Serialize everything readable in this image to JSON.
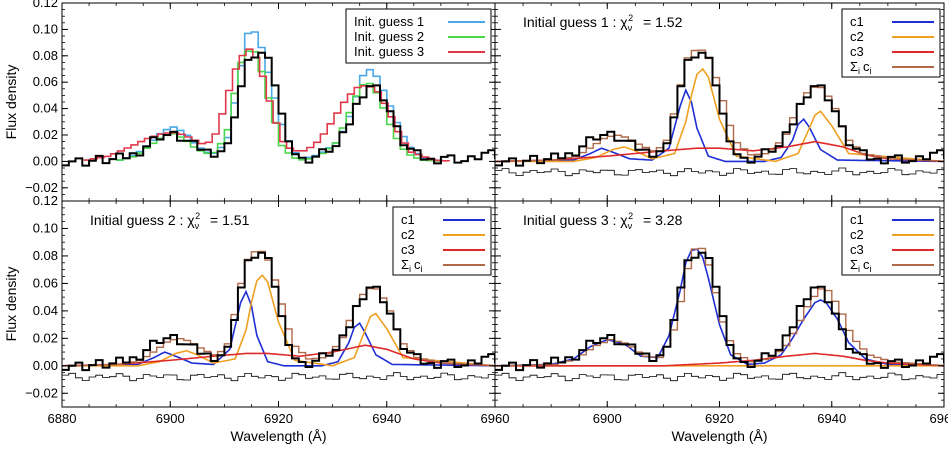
{
  "chart_data": {
    "type": "line",
    "xlabel": "Wavelength (Å)",
    "ylabel": "Flux density",
    "xlim": [
      6880,
      6960
    ],
    "ylim": [
      -0.03,
      0.12
    ],
    "x_ticks": [
      6880,
      6900,
      6920,
      6940,
      6960
    ],
    "x_tick_labels": [
      "6880",
      "6900",
      "6920",
      "6940",
      "6960"
    ],
    "y_ticks": [
      -0.02,
      0.0,
      0.02,
      0.04,
      0.06,
      0.08,
      0.1,
      0.12
    ],
    "y_tick_labels": [
      "−0.02",
      "0.00",
      "0.02",
      "0.04",
      "0.06",
      "0.08",
      "0.10",
      "0.12"
    ],
    "grid": false,
    "colors": {
      "observed": "#000000",
      "blue": "#1f2fd6",
      "orange": "#f0a020",
      "red": "#e02a2a",
      "brown": "#b06a4a",
      "light_blue": "#4aa8e8",
      "green": "#4ad84a",
      "pink_red": "#e0384a"
    },
    "observed_spectrum": {
      "x": [
        6880,
        6882,
        6884,
        6886,
        6888,
        6890,
        6892,
        6894,
        6896,
        6898,
        6900,
        6902,
        6904,
        6906,
        6908,
        6910,
        6912,
        6914,
        6916,
        6918,
        6920,
        6922,
        6924,
        6926,
        6928,
        6930,
        6932,
        6934,
        6936,
        6938,
        6940,
        6942,
        6944,
        6946,
        6948,
        6950,
        6952,
        6954,
        6956,
        6958,
        6960
      ],
      "y": [
        0.0,
        0.001,
        -0.001,
        0.002,
        0.0,
        0.003,
        0.004,
        0.008,
        0.016,
        0.02,
        0.02,
        0.016,
        0.012,
        0.008,
        0.006,
        0.012,
        0.05,
        0.078,
        0.083,
        0.073,
        0.035,
        0.008,
        0.0,
        0.003,
        0.008,
        0.011,
        0.024,
        0.045,
        0.058,
        0.055,
        0.038,
        0.016,
        0.008,
        0.003,
        0.0,
        0.004,
        0.002,
        0.0,
        0.003,
        0.007,
        0.003
      ]
    },
    "panels": [
      {
        "id": "top-left",
        "title": "",
        "chi2": "",
        "series": [
          {
            "name": "Init. guess 1",
            "color": "#4aa8e8",
            "x": [
              6890,
              6893,
              6896,
              6898,
              6900,
              6902,
              6904,
              6906,
              6908,
              6910,
              6912,
              6913,
              6914,
              6915,
              6916,
              6918,
              6920,
              6922,
              6924,
              6926,
              6928,
              6930,
              6932,
              6934,
              6935,
              6936,
              6937,
              6938,
              6940,
              6942,
              6944,
              6946,
              6950
            ],
            "y": [
              0.001,
              0.005,
              0.015,
              0.023,
              0.026,
              0.022,
              0.013,
              0.007,
              0.006,
              0.018,
              0.06,
              0.085,
              0.101,
              0.098,
              0.09,
              0.06,
              0.028,
              0.008,
              0.002,
              0.004,
              0.008,
              0.014,
              0.028,
              0.052,
              0.065,
              0.07,
              0.068,
              0.061,
              0.042,
              0.022,
              0.009,
              0.003,
              0.0
            ]
          },
          {
            "name": "Init. guess 2",
            "color": "#4ad84a",
            "x": [
              6890,
              6893,
              6896,
              6898,
              6900,
              6902,
              6904,
              6906,
              6908,
              6910,
              6912,
              6913,
              6914,
              6915,
              6916,
              6918,
              6920,
              6922,
              6924,
              6926,
              6928,
              6930,
              6932,
              6934,
              6935,
              6936,
              6937,
              6938,
              6940,
              6942,
              6944,
              6946,
              6950
            ],
            "y": [
              0.001,
              0.004,
              0.013,
              0.019,
              0.021,
              0.017,
              0.01,
              0.006,
              0.007,
              0.024,
              0.068,
              0.082,
              0.084,
              0.083,
              0.072,
              0.04,
              0.012,
              0.003,
              0.001,
              0.003,
              0.007,
              0.014,
              0.032,
              0.052,
              0.058,
              0.06,
              0.056,
              0.048,
              0.028,
              0.011,
              0.004,
              0.001,
              0.0
            ]
          },
          {
            "name": "Init. guess 3",
            "color": "#e0384a",
            "x": [
              6884,
              6888,
              6892,
              6895,
              6898,
              6900,
              6902,
              6904,
              6906,
              6908,
              6910,
              6911,
              6912,
              6913,
              6914,
              6915,
              6916,
              6918,
              6920,
              6922,
              6924,
              6926,
              6928,
              6930,
              6932,
              6934,
              6936,
              6938,
              6940,
              6942,
              6944,
              6948,
              6952
            ],
            "y": [
              0.001,
              0.004,
              0.011,
              0.017,
              0.021,
              0.022,
              0.02,
              0.016,
              0.012,
              0.022,
              0.05,
              0.065,
              0.075,
              0.082,
              0.085,
              0.081,
              0.072,
              0.042,
              0.016,
              0.008,
              0.008,
              0.012,
              0.022,
              0.035,
              0.048,
              0.056,
              0.058,
              0.052,
              0.036,
              0.018,
              0.007,
              0.001,
              0.0
            ]
          }
        ],
        "show_residuals": false,
        "legend": [
          "Init. guess 1",
          "Init. guess 2",
          "Init. guess 3"
        ]
      },
      {
        "id": "top-right",
        "title": "Initial guess 1 :",
        "chi2": "1.52",
        "show_residuals": true,
        "series": [
          {
            "name": "c1",
            "color": "#1f2fd6",
            "x": [
              6880,
              6894,
              6897,
              6899,
              6901,
              6904,
              6908,
              6911,
              6913,
              6914,
              6915,
              6916,
              6918,
              6921,
              6928,
              6931,
              6933,
              6934,
              6935,
              6936,
              6938,
              6941,
              6960
            ],
            "y": [
              0.0,
              0.001,
              0.006,
              0.01,
              0.007,
              0.002,
              0.001,
              0.01,
              0.042,
              0.054,
              0.045,
              0.025,
              0.004,
              0.0,
              0.0,
              0.003,
              0.016,
              0.028,
              0.032,
              0.026,
              0.009,
              0.001,
              0.0
            ]
          },
          {
            "name": "c2",
            "color": "#f0a020",
            "x": [
              6880,
              6894,
              6898,
              6901,
              6903,
              6905,
              6908,
              6912,
              6914,
              6915,
              6916,
              6917,
              6918,
              6920,
              6923,
              6930,
              6934,
              6936,
              6937,
              6938,
              6940,
              6943,
              6960
            ],
            "y": [
              0.0,
              0.0,
              0.003,
              0.009,
              0.011,
              0.008,
              0.002,
              0.006,
              0.03,
              0.05,
              0.066,
              0.07,
              0.064,
              0.032,
              0.004,
              0.0,
              0.006,
              0.025,
              0.035,
              0.038,
              0.027,
              0.006,
              0.0
            ]
          },
          {
            "name": "c3",
            "color": "#e02a2a",
            "x": [
              6880,
              6890,
              6900,
              6910,
              6916,
              6920,
              6926,
              6932,
              6937,
              6942,
              6946,
              6950,
              6960
            ],
            "y": [
              0.0,
              0.001,
              0.004,
              0.008,
              0.01,
              0.01,
              0.008,
              0.011,
              0.015,
              0.011,
              0.005,
              0.002,
              0.0
            ]
          },
          {
            "name": "Σ c",
            "color": "#b06a4a",
            "x": [
              6880,
              6890,
              6894,
              6897,
              6899,
              6901,
              6903,
              6905,
              6908,
              6910,
              6912,
              6913,
              6914,
              6915,
              6916,
              6917,
              6918,
              6920,
              6922,
              6925,
              6928,
              6931,
              6933,
              6935,
              6936,
              6937,
              6938,
              6940,
              6942,
              6945,
              6950,
              6960
            ],
            "y": [
              0.0,
              0.001,
              0.004,
              0.012,
              0.018,
              0.02,
              0.018,
              0.013,
              0.007,
              0.016,
              0.048,
              0.068,
              0.082,
              0.084,
              0.085,
              0.082,
              0.074,
              0.046,
              0.016,
              0.005,
              0.006,
              0.018,
              0.038,
              0.052,
              0.056,
              0.057,
              0.055,
              0.04,
              0.018,
              0.006,
              0.002,
              0.0
            ]
          }
        ],
        "legend": [
          "c1",
          "c2",
          "c3",
          "Σ c"
        ]
      },
      {
        "id": "bottom-left",
        "title": "Initial guess 2 :",
        "chi2": "1.51",
        "show_residuals": true,
        "series": [
          {
            "name": "c1",
            "color": "#1f2fd6",
            "x": [
              6880,
              6894,
              6897,
              6899,
              6901,
              6904,
              6908,
              6911,
              6913,
              6914,
              6915,
              6916,
              6918,
              6921,
              6928,
              6931,
              6933,
              6934,
              6935,
              6936,
              6938,
              6941,
              6960
            ],
            "y": [
              0.0,
              0.001,
              0.006,
              0.01,
              0.007,
              0.002,
              0.001,
              0.012,
              0.046,
              0.054,
              0.044,
              0.022,
              0.003,
              0.0,
              0.0,
              0.003,
              0.017,
              0.028,
              0.031,
              0.024,
              0.008,
              0.001,
              0.0
            ]
          },
          {
            "name": "c2",
            "color": "#f0a020",
            "x": [
              6880,
              6894,
              6898,
              6901,
              6903,
              6905,
              6908,
              6912,
              6914,
              6915,
              6916,
              6917,
              6918,
              6920,
              6923,
              6930,
              6934,
              6936,
              6937,
              6938,
              6940,
              6943,
              6960
            ],
            "y": [
              0.0,
              0.0,
              0.003,
              0.009,
              0.011,
              0.008,
              0.002,
              0.005,
              0.026,
              0.046,
              0.062,
              0.066,
              0.061,
              0.032,
              0.004,
              0.0,
              0.006,
              0.026,
              0.036,
              0.038,
              0.027,
              0.006,
              0.0
            ]
          },
          {
            "name": "c3",
            "color": "#e02a2a",
            "x": [
              6880,
              6890,
              6900,
              6908,
              6914,
              6918,
              6924,
              6930,
              6936,
              6940,
              6945,
              6950,
              6960
            ],
            "y": [
              0.0,
              0.001,
              0.004,
              0.007,
              0.009,
              0.009,
              0.007,
              0.01,
              0.015,
              0.012,
              0.005,
              0.002,
              0.0
            ]
          },
          {
            "name": "Σ c",
            "color": "#b06a4a",
            "x": [
              6880,
              6890,
              6894,
              6897,
              6899,
              6901,
              6903,
              6905,
              6908,
              6910,
              6912,
              6913,
              6914,
              6915,
              6916,
              6917,
              6918,
              6920,
              6922,
              6925,
              6928,
              6931,
              6933,
              6935,
              6936,
              6937,
              6938,
              6940,
              6942,
              6945,
              6950,
              6960
            ],
            "y": [
              0.0,
              0.001,
              0.004,
              0.012,
              0.018,
              0.02,
              0.018,
              0.013,
              0.007,
              0.016,
              0.05,
              0.07,
              0.08,
              0.083,
              0.084,
              0.081,
              0.073,
              0.045,
              0.016,
              0.005,
              0.006,
              0.018,
              0.038,
              0.052,
              0.056,
              0.057,
              0.055,
              0.04,
              0.018,
              0.006,
              0.002,
              0.0
            ]
          }
        ],
        "legend": [
          "c1",
          "c2",
          "c3",
          "Σ c"
        ]
      },
      {
        "id": "bottom-right",
        "title": "Initial guess 3 :",
        "chi2": "3.28",
        "show_residuals": true,
        "series": [
          {
            "name": "c1",
            "color": "#1f2fd6",
            "x": [
              6880,
              6890,
              6894,
              6897,
              6900,
              6903,
              6906,
              6909,
              6911,
              6913,
              6914,
              6915,
              6916,
              6917,
              6918,
              6920,
              6922,
              6925,
              6928,
              6931,
              6933,
              6935,
              6937,
              6938,
              6939,
              6941,
              6943,
              6946,
              6950,
              6960
            ],
            "y": [
              0.0,
              0.001,
              0.005,
              0.014,
              0.019,
              0.016,
              0.007,
              0.006,
              0.022,
              0.055,
              0.075,
              0.084,
              0.085,
              0.079,
              0.064,
              0.03,
              0.008,
              0.001,
              0.002,
              0.008,
              0.02,
              0.034,
              0.046,
              0.048,
              0.046,
              0.034,
              0.017,
              0.005,
              0.001,
              0.0
            ]
          },
          {
            "name": "c2",
            "color": "#f0a020",
            "x": [
              6880,
              6960
            ],
            "y": [
              0.0,
              0.0
            ]
          },
          {
            "name": "c3",
            "color": "#e02a2a",
            "x": [
              6880,
              6910,
              6920,
              6926,
              6932,
              6937,
              6942,
              6946,
              6950,
              6960
            ],
            "y": [
              0.0,
              0.0,
              0.002,
              0.004,
              0.007,
              0.009,
              0.007,
              0.004,
              0.002,
              0.0
            ]
          },
          {
            "name": "Σ c",
            "color": "#b06a4a",
            "x": [
              6880,
              6890,
              6894,
              6897,
              6900,
              6903,
              6906,
              6909,
              6911,
              6913,
              6914,
              6915,
              6916,
              6917,
              6918,
              6920,
              6922,
              6925,
              6928,
              6931,
              6933,
              6935,
              6937,
              6938,
              6939,
              6941,
              6943,
              6946,
              6950,
              6960
            ],
            "y": [
              0.0,
              0.001,
              0.005,
              0.014,
              0.019,
              0.016,
              0.007,
              0.006,
              0.022,
              0.055,
              0.076,
              0.085,
              0.087,
              0.081,
              0.066,
              0.032,
              0.01,
              0.003,
              0.005,
              0.013,
              0.027,
              0.043,
              0.055,
              0.057,
              0.054,
              0.04,
              0.021,
              0.008,
              0.003,
              0.0
            ]
          }
        ],
        "legend": [
          "c1",
          "c2",
          "c3",
          "Σ c"
        ]
      }
    ],
    "residual_offset": -0.008,
    "residual_amplitude": 0.006
  }
}
